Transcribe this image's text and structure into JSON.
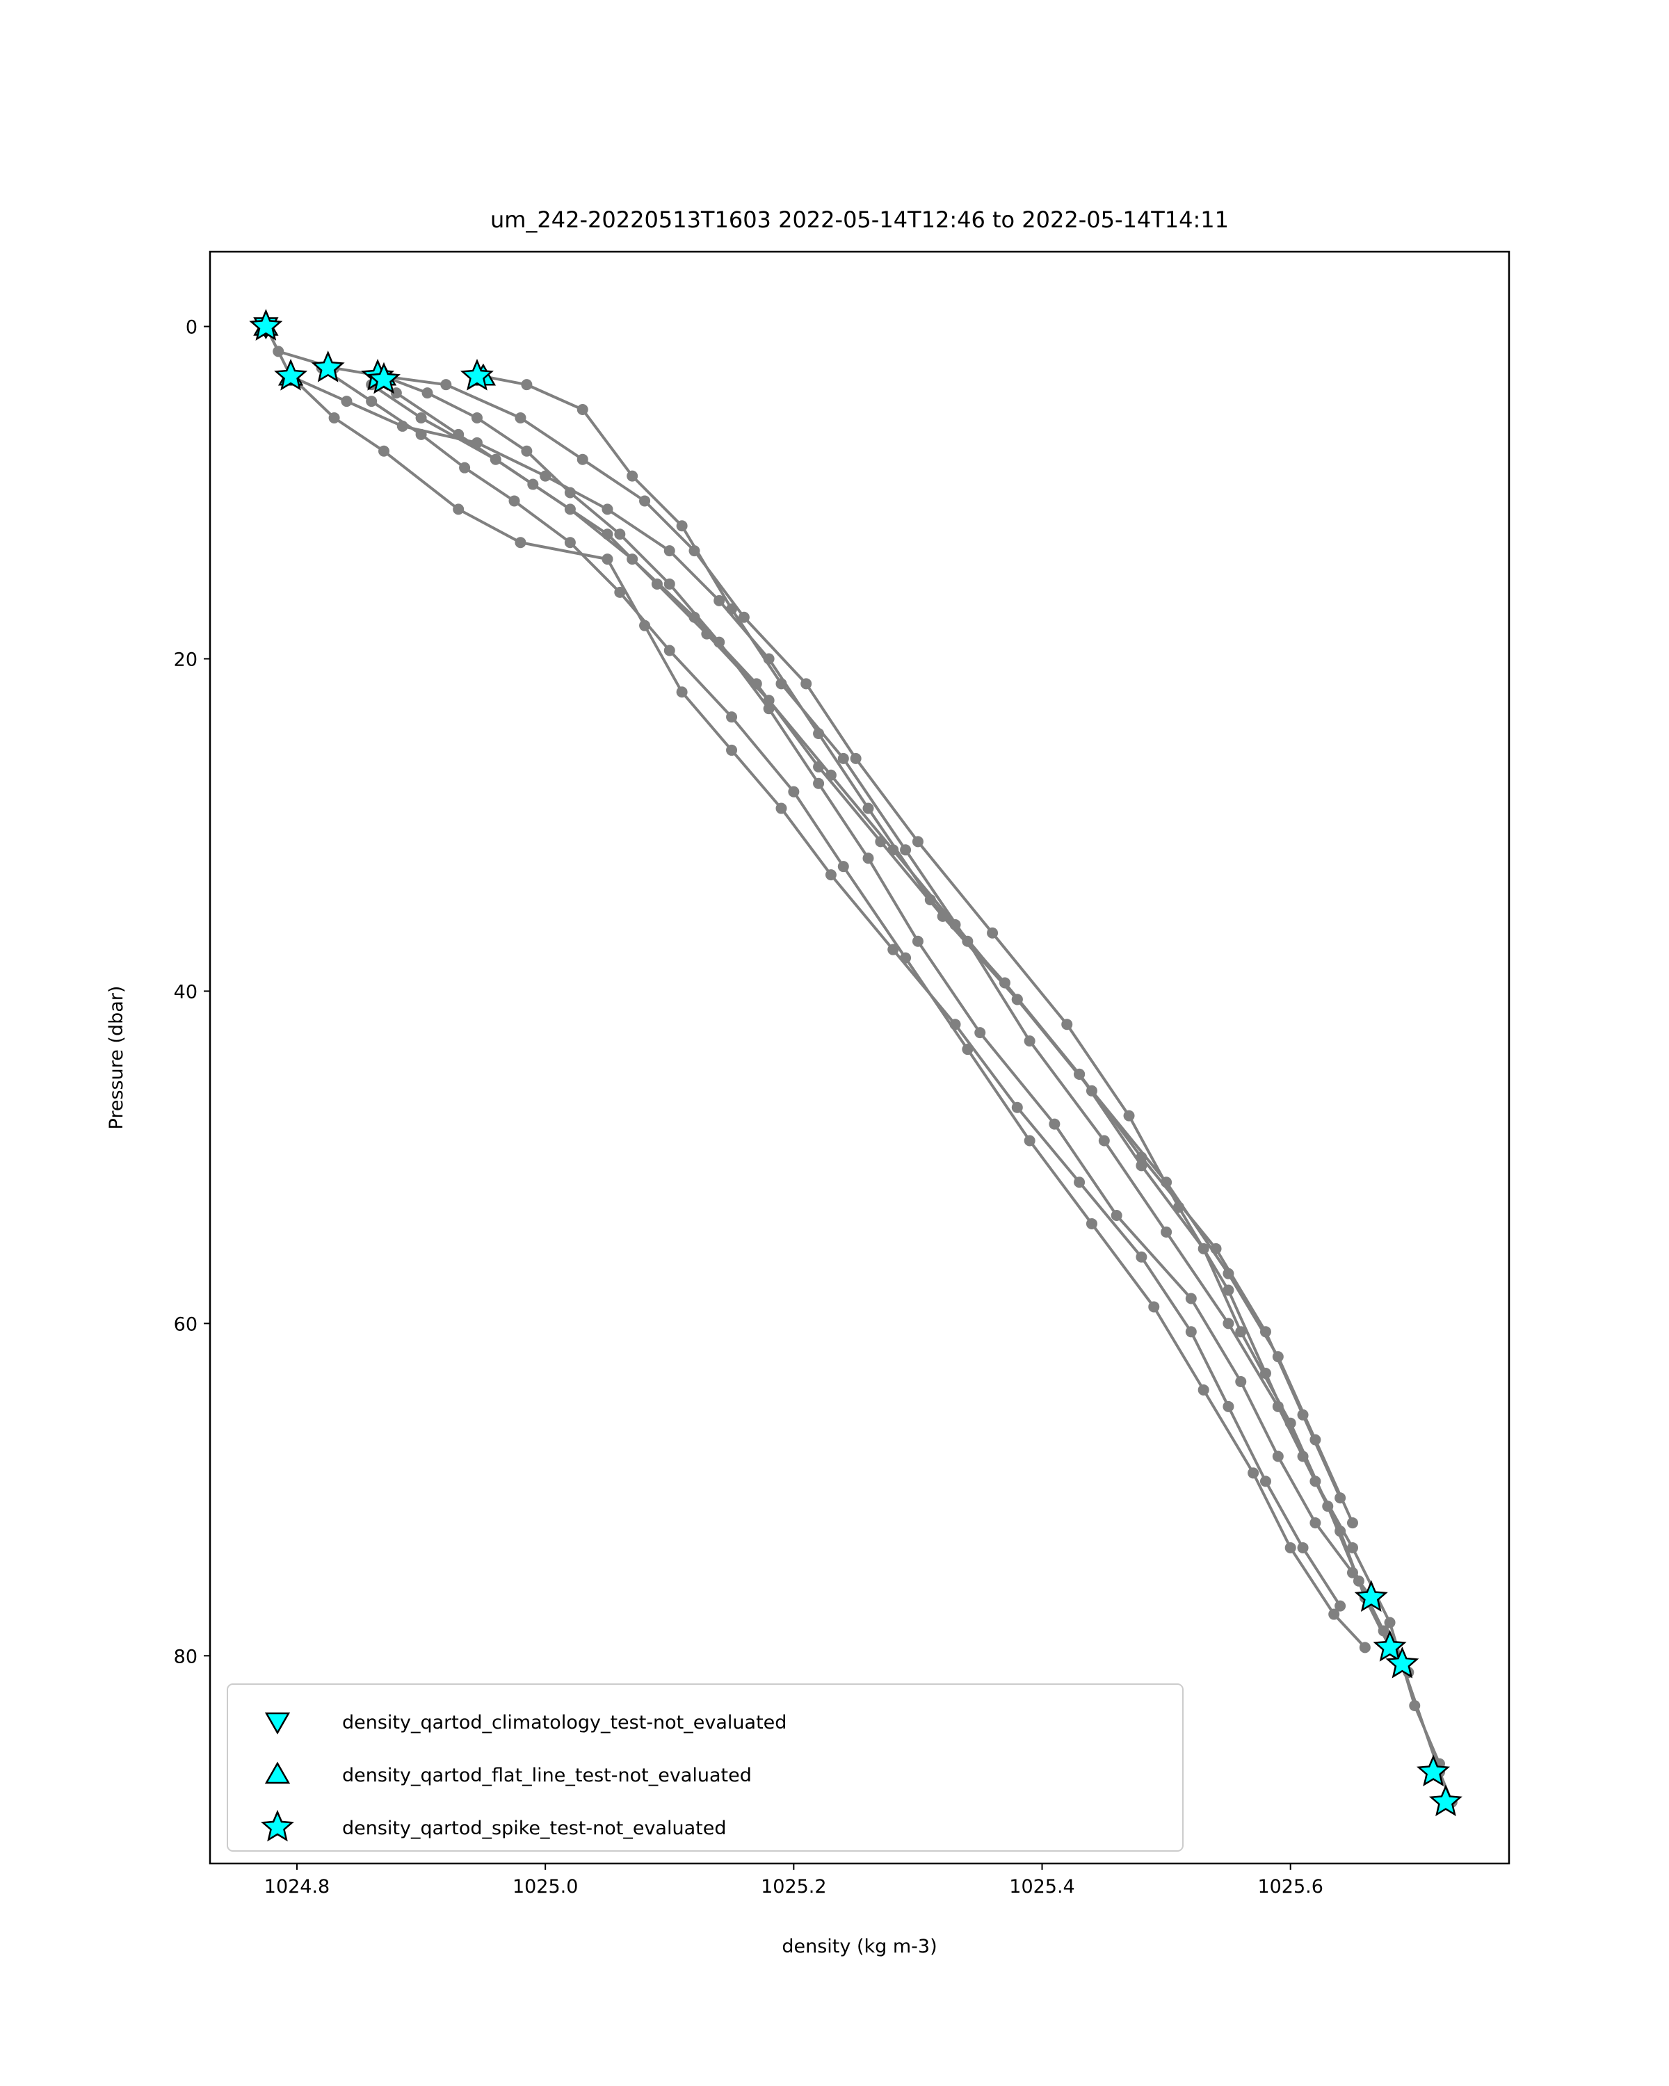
{
  "chart_data": {
    "type": "line",
    "title": "um_242-20220513T1603 2022-05-14T12:46 to 2022-05-14T14:11",
    "xlabel": "density (kg m-3)",
    "ylabel": "Pressure (dbar)",
    "xlim": [
      1024.73,
      1025.776
    ],
    "ylim": [
      92.5,
      -4.5
    ],
    "y_inverted": true,
    "grid": false,
    "legend_position": "lower left",
    "x_ticks": [
      1024.8,
      1025.0,
      1025.2,
      1025.4,
      1025.6
    ],
    "x_tick_labels": [
      "1024.8",
      "1025.0",
      "1025.2",
      "1025.4",
      "1025.6"
    ],
    "y_ticks": [
      0,
      20,
      40,
      60,
      80
    ],
    "y_tick_labels": [
      "0",
      "20",
      "40",
      "60",
      "80"
    ],
    "line_color": "#808080",
    "marker_color": "#00ffff",
    "series": [
      {
        "x": [
          1024.775,
          1024.785,
          1024.83,
          1024.87,
          1024.92,
          1024.98,
          1025.03,
          1025.08,
          1025.12,
          1025.16,
          1025.21,
          1025.25,
          1025.3,
          1025.36,
          1025.42,
          1025.47,
          1025.51,
          1025.55,
          1025.58,
          1025.61,
          1025.64,
          1025.66,
          1025.68,
          1025.69,
          1025.72,
          1025.73
        ],
        "y": [
          0,
          1.5,
          2.5,
          3.0,
          3.5,
          5.5,
          8.0,
          10.5,
          13.5,
          17.5,
          21.5,
          26.0,
          31.0,
          36.5,
          42.0,
          47.5,
          53.0,
          58.0,
          63.0,
          68.0,
          72.5,
          76.5,
          79.5,
          80.5,
          87.0,
          88.8
        ]
      },
      {
        "x": [
          1024.775,
          1024.795,
          1024.84,
          1024.885,
          1024.945,
          1025.0,
          1025.05,
          1025.1,
          1025.14,
          1025.18,
          1025.22,
          1025.26,
          1025.31,
          1025.37,
          1025.43,
          1025.48,
          1025.53,
          1025.56,
          1025.6,
          1025.63,
          1025.655,
          1025.675,
          1025.695
        ],
        "y": [
          0,
          3.0,
          4.5,
          6.0,
          7.0,
          9.0,
          11.0,
          13.5,
          16.5,
          20.0,
          24.5,
          29.0,
          34.5,
          39.5,
          45.0,
          50.5,
          55.5,
          60.5,
          66.0,
          71.0,
          75.5,
          78.5,
          81.0
        ]
      },
      {
        "x": [
          1024.87,
          1024.905,
          1024.945,
          1024.985,
          1025.02,
          1025.06,
          1025.1,
          1025.14,
          1025.18,
          1025.22,
          1025.26,
          1025.3,
          1025.35,
          1025.41,
          1025.46,
          1025.52,
          1025.56,
          1025.59,
          1025.62,
          1025.65,
          1025.665
        ],
        "y": [
          3.0,
          4.0,
          5.5,
          7.5,
          10.0,
          12.5,
          15.5,
          19.0,
          23.0,
          27.5,
          32.0,
          37.0,
          42.5,
          48.0,
          53.5,
          58.5,
          63.5,
          68.0,
          72.0,
          75.0,
          76.5
        ]
      },
      {
        "x": [
          1024.95,
          1024.985,
          1025.03,
          1025.07,
          1025.11,
          1025.15,
          1025.19,
          1025.24,
          1025.29,
          1025.34,
          1025.39,
          1025.45,
          1025.5,
          1025.55,
          1025.59,
          1025.62,
          1025.65,
          1025.68,
          1025.7,
          1025.72
        ],
        "y": [
          3.0,
          3.5,
          5.0,
          9.0,
          12.0,
          17.0,
          21.5,
          26.0,
          31.5,
          37.0,
          43.0,
          49.0,
          54.5,
          60.0,
          65.0,
          69.5,
          73.5,
          78.0,
          83.0,
          86.5
        ]
      },
      {
        "x": [
          1024.82,
          1024.86,
          1024.9,
          1024.935,
          1024.975,
          1025.02,
          1025.06,
          1025.1,
          1025.15,
          1025.2,
          1025.24,
          1025.29,
          1025.34,
          1025.39,
          1025.44,
          1025.49,
          1025.53,
          1025.57,
          1025.6,
          1025.635,
          1025.66
        ],
        "y": [
          2.5,
          4.5,
          6.5,
          8.5,
          10.5,
          13.0,
          16.0,
          19.5,
          23.5,
          28.0,
          32.5,
          38.0,
          43.5,
          49.0,
          54.0,
          59.0,
          64.0,
          69.0,
          73.5,
          77.5,
          79.5
        ]
      },
      {
        "x": [
          1024.795,
          1024.83,
          1024.87,
          1024.93,
          1024.98,
          1025.05,
          1025.08,
          1025.11,
          1025.15,
          1025.19,
          1025.23,
          1025.28,
          1025.33,
          1025.38,
          1025.43,
          1025.48,
          1025.52,
          1025.55,
          1025.58,
          1025.61,
          1025.64
        ],
        "y": [
          3.0,
          5.5,
          7.5,
          11.0,
          13.0,
          14.0,
          18.0,
          22.0,
          25.5,
          29.0,
          33.0,
          37.5,
          42.0,
          47.0,
          51.5,
          56.0,
          60.5,
          65.0,
          69.5,
          73.5,
          77.0
        ]
      },
      {
        "x": [
          1024.86,
          1024.9,
          1024.96,
          1025.02,
          1025.07,
          1025.12,
          1025.17,
          1025.22,
          1025.27,
          1025.32,
          1025.38,
          1025.44,
          1025.5,
          1025.55,
          1025.59,
          1025.62,
          1025.65
        ],
        "y": [
          3.5,
          5.5,
          8.0,
          11.0,
          14.0,
          17.5,
          21.5,
          26.5,
          31.0,
          35.5,
          40.5,
          46.0,
          51.5,
          57.0,
          62.0,
          67.0,
          72.0
        ]
      },
      {
        "x": [
          1024.88,
          1024.93,
          1024.99,
          1025.05,
          1025.09,
          1025.13,
          1025.18,
          1025.23,
          1025.28,
          1025.33,
          1025.38,
          1025.43,
          1025.48,
          1025.54,
          1025.58,
          1025.61,
          1025.64
        ],
        "y": [
          4.0,
          6.5,
          9.5,
          12.5,
          15.5,
          18.5,
          22.5,
          27.0,
          31.5,
          36.0,
          40.5,
          45.0,
          50.0,
          55.5,
          60.5,
          65.5,
          70.5
        ]
      }
    ],
    "flagged_markers": [
      {
        "test": "density_qartod_climatology_test-not_evaluated",
        "marker": "triangle-down",
        "x": [
          1024.775
        ],
        "y": [
          0
        ]
      },
      {
        "test": "density_qartod_flat_line_test-not_evaluated",
        "marker": "triangle-up",
        "x": [
          1024.775,
          1024.795,
          1024.87,
          1024.95
        ],
        "y": [
          0,
          3.0,
          3.0,
          3.0
        ]
      },
      {
        "test": "density_qartod_spike_test-not_evaluated",
        "marker": "star",
        "x": [
          1024.775,
          1024.795,
          1024.825,
          1024.865,
          1024.87,
          1024.945,
          1025.665,
          1025.68,
          1025.69,
          1025.715,
          1025.725
        ],
        "y": [
          0,
          3.0,
          2.5,
          3.0,
          3.2,
          3.0,
          76.5,
          79.5,
          80.5,
          87.0,
          88.8
        ]
      }
    ],
    "legend": [
      {
        "label": "density_qartod_climatology_test-not_evaluated",
        "marker": "triangle-down"
      },
      {
        "label": "density_qartod_flat_line_test-not_evaluated",
        "marker": "triangle-up"
      },
      {
        "label": "density_qartod_spike_test-not_evaluated",
        "marker": "star"
      }
    ]
  }
}
